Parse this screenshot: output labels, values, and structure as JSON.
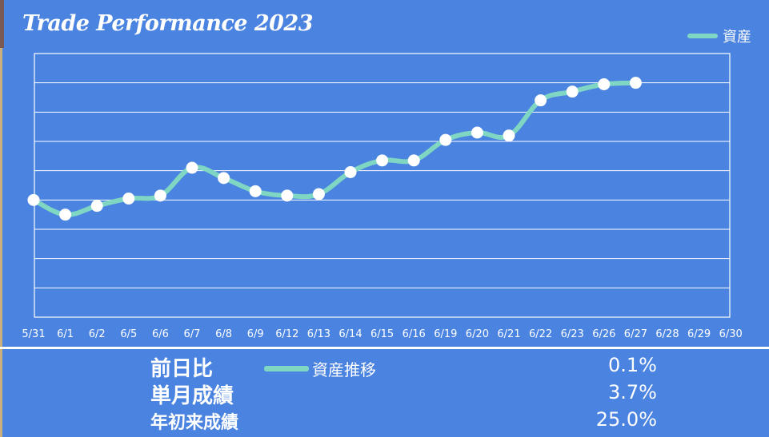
{
  "chart_data": {
    "type": "line",
    "title": "Trade Performance 2023",
    "categories": [
      "5/31",
      "6/1",
      "6/2",
      "6/5",
      "6/6",
      "6/7",
      "6/8",
      "6/9",
      "6/12",
      "6/13",
      "6/14",
      "6/15",
      "6/16",
      "6/19",
      "6/20",
      "6/21",
      "6/22",
      "6/23",
      "6/26",
      "6/27",
      "6/28",
      "6/29",
      "6/30"
    ],
    "series": [
      {
        "name": "資産",
        "values": [
          4.0,
          3.5,
          3.8,
          4.05,
          4.15,
          5.1,
          4.75,
          4.3,
          4.15,
          4.2,
          4.95,
          5.35,
          5.35,
          6.05,
          6.3,
          6.2,
          7.4,
          7.7,
          7.95,
          8.0,
          null,
          null,
          null
        ]
      }
    ],
    "ylim": [
      0,
      9
    ],
    "grid": true,
    "legend": "top-right",
    "color": "#7fd6c2"
  },
  "legend_label": "資産",
  "secondary_legend_label": "資産推移",
  "stats": [
    {
      "label": "前日比",
      "value": "0.1%"
    },
    {
      "label": "単月成績",
      "value": "3.7%"
    },
    {
      "label": "年初来成績",
      "value": "25.0%"
    }
  ]
}
